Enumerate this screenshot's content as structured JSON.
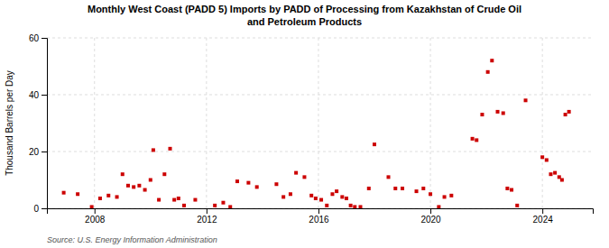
{
  "chart_data": {
    "type": "scatter",
    "title": "Monthly West Coast (PADD 5) Imports by PADD of Processing from Kazakhstan of Crude Oil\nand Petroleum Products",
    "ylabel": "Thousand Barrels per Day",
    "annotations": [
      "Source: U.S. Energy Information Administration"
    ],
    "color": "#cc0000",
    "marker": "square",
    "grid": true,
    "xlim": [
      2006.3,
      2025.8
    ],
    "xticks": [
      2008,
      2012,
      2016,
      2020,
      2024
    ],
    "ylim": [
      0,
      60
    ],
    "yticks": [
      0,
      20,
      40,
      60
    ],
    "x": [
      2006.9,
      2007.4,
      2007.9,
      2008.2,
      2008.5,
      2008.8,
      2009.0,
      2009.2,
      2009.4,
      2009.6,
      2009.8,
      2010.0,
      2010.1,
      2010.3,
      2010.5,
      2010.7,
      2010.85,
      2011.0,
      2011.2,
      2011.6,
      2012.3,
      2012.6,
      2012.85,
      2013.1,
      2013.5,
      2013.8,
      2014.5,
      2014.75,
      2015.0,
      2015.2,
      2015.5,
      2015.75,
      2015.9,
      2016.1,
      2016.3,
      2016.5,
      2016.65,
      2016.85,
      2017.0,
      2017.15,
      2017.3,
      2017.5,
      2017.8,
      2018.0,
      2018.5,
      2018.75,
      2019.0,
      2019.5,
      2019.75,
      2020.0,
      2020.3,
      2020.5,
      2020.75,
      2021.5,
      2021.65,
      2021.85,
      2022.05,
      2022.2,
      2022.4,
      2022.6,
      2022.75,
      2022.9,
      2023.1,
      2023.4,
      2024.0,
      2024.15,
      2024.3,
      2024.45,
      2024.6,
      2024.7,
      2024.82,
      2024.95
    ],
    "values": [
      5.5,
      5.0,
      0.5,
      3.5,
      4.5,
      4.0,
      12.0,
      8.0,
      7.5,
      8.0,
      6.5,
      10.0,
      20.5,
      3.0,
      12.0,
      21.0,
      3.0,
      3.5,
      1.0,
      3.0,
      1.0,
      2.0,
      0.5,
      9.5,
      9.0,
      7.5,
      8.5,
      4.0,
      5.0,
      12.5,
      11.0,
      4.5,
      3.5,
      3.0,
      1.0,
      5.0,
      6.0,
      4.0,
      3.5,
      1.0,
      0.5,
      0.5,
      7.0,
      22.5,
      11.0,
      7.0,
      7.0,
      6.0,
      7.0,
      5.0,
      0.5,
      4.0,
      4.5,
      24.5,
      24.0,
      33.0,
      48.0,
      52.0,
      34.0,
      33.5,
      7.0,
      6.5,
      1.0,
      38.0,
      18.0,
      17.0,
      12.0,
      12.5,
      11.0,
      10.0,
      33.0,
      34.0
    ]
  }
}
